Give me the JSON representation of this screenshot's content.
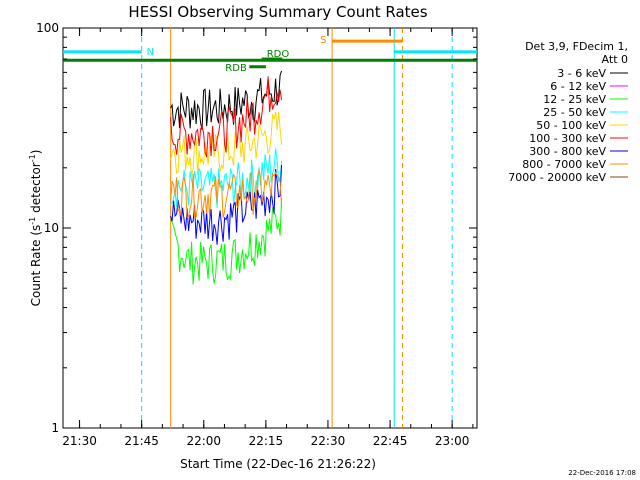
{
  "chart_data": {
    "type": "line",
    "title": "HESSI Observing Summary Count Rates",
    "xlabel": "Start Time (22-Dec-16 21:26:22)",
    "ylabel": "Count Rate (s",
    "ylabel_sup": "-1",
    "ylabel_tail": " detector",
    "ylabel_tail_sup": "-1",
    "ylabel_close": ")",
    "yscale": "log",
    "ylim": [
      1,
      100
    ],
    "y_ticks": [
      {
        "value": 1,
        "label": "1"
      },
      {
        "value": 10,
        "label": "10"
      },
      {
        "value": 100,
        "label": "100"
      }
    ],
    "x_ticks": [
      {
        "value": 4,
        "label": "21:30"
      },
      {
        "value": 19,
        "label": "21:45"
      },
      {
        "value": 34,
        "label": "22:00"
      },
      {
        "value": 49,
        "label": "22:15"
      },
      {
        "value": 64,
        "label": "22:30"
      },
      {
        "value": 79,
        "label": "22:45"
      },
      {
        "value": 94,
        "label": "23:00"
      }
    ],
    "xlim": [
      0,
      100
    ],
    "x_unit_note": "minutes after 21:26",
    "legend": {
      "position": "right",
      "header": [
        "Det 3,9, FDecim 1,",
        "Att 0"
      ],
      "entries": [
        {
          "label": "3 - 6 keV",
          "color": "#000000"
        },
        {
          "label": "6 - 12 keV",
          "color": "#ff00ff"
        },
        {
          "label": "12 - 25 keV",
          "color": "#00ff00"
        },
        {
          "label": "25 - 50 keV",
          "color": "#00ffff"
        },
        {
          "label": "50 - 100 keV",
          "color": "#ffd700"
        },
        {
          "label": "100 - 300 keV",
          "color": "#ff0000"
        },
        {
          "label": "300 - 800 keV",
          "color": "#0000ff"
        },
        {
          "label": "800 - 7000 keV",
          "color": "#ff8c00"
        },
        {
          "label": "7000 - 20000 keV",
          "color": "#8b4513"
        }
      ]
    },
    "data_interval": [
      26,
      53
    ],
    "series": [
      {
        "name": "3 - 6 keV",
        "color": "#000000",
        "values": [
          [
            26,
            40
          ],
          [
            30,
            40
          ],
          [
            34,
            40
          ],
          [
            38,
            40
          ],
          [
            42,
            42
          ],
          [
            46,
            44
          ],
          [
            50,
            48
          ],
          [
            53,
            52
          ]
        ]
      },
      {
        "name": "12 - 25 keV",
        "color": "#00ff00",
        "values": [
          [
            26,
            9
          ],
          [
            30,
            7
          ],
          [
            34,
            6.8
          ],
          [
            38,
            7
          ],
          [
            42,
            7.5
          ],
          [
            46,
            8.5
          ],
          [
            50,
            10
          ],
          [
            53,
            12
          ]
        ]
      },
      {
        "name": "25 - 50 keV",
        "color": "#00ffff",
        "values": [
          [
            26,
            17
          ],
          [
            30,
            16
          ],
          [
            34,
            16
          ],
          [
            38,
            16
          ],
          [
            42,
            17
          ],
          [
            46,
            18
          ],
          [
            50,
            20
          ],
          [
            53,
            22
          ]
        ]
      },
      {
        "name": "50 - 100 keV",
        "color": "#ffd700",
        "values": [
          [
            26,
            25
          ],
          [
            30,
            24
          ],
          [
            34,
            24
          ],
          [
            38,
            24
          ],
          [
            42,
            25
          ],
          [
            46,
            27
          ],
          [
            50,
            30
          ],
          [
            53,
            33
          ]
        ]
      },
      {
        "name": "100 - 300 keV",
        "color": "#ff0000",
        "values": [
          [
            26,
            30
          ],
          [
            30,
            30
          ],
          [
            34,
            30
          ],
          [
            38,
            31
          ],
          [
            42,
            33
          ],
          [
            46,
            38
          ],
          [
            50,
            48
          ],
          [
            53,
            55
          ]
        ]
      },
      {
        "name": "300 - 800 keV",
        "color": "#0000ff",
        "values": [
          [
            26,
            12
          ],
          [
            30,
            11
          ],
          [
            34,
            11
          ],
          [
            38,
            11
          ],
          [
            42,
            12
          ],
          [
            46,
            13
          ],
          [
            50,
            15
          ],
          [
            53,
            17
          ]
        ]
      },
      {
        "name": "800 - 7000 keV",
        "color": "#ff8c00",
        "values": [
          [
            26,
            15.5
          ],
          [
            30,
            15
          ],
          [
            34,
            14.8
          ],
          [
            38,
            14.8
          ],
          [
            42,
            15
          ],
          [
            46,
            15.5
          ],
          [
            50,
            16
          ],
          [
            53,
            16.5
          ]
        ]
      }
    ],
    "annotations": [
      {
        "label": "N",
        "color": "#00e5ff",
        "kind": "bar",
        "x": [
          0,
          19
        ],
        "y": 76
      },
      {
        "label": "",
        "color": "#00e5ff",
        "kind": "bar",
        "x": [
          80,
          100
        ],
        "y": 76
      },
      {
        "label": "S",
        "color": "#ff8c00",
        "kind": "bar",
        "x": [
          65,
          82
        ],
        "y": 86
      },
      {
        "label": "",
        "color": "#008000",
        "kind": "bar",
        "x": [
          0,
          100
        ],
        "y": 69
      },
      {
        "label": "RDB",
        "color": "#008000",
        "kind": "bar",
        "x": [
          45,
          49
        ],
        "y": 64
      },
      {
        "label": "RDO",
        "color": "#008000",
        "kind": "bar",
        "x": [
          48,
          53
        ],
        "y": 70
      }
    ],
    "vlines": [
      {
        "x": 19,
        "color": "#00e5ff",
        "style": "dashed"
      },
      {
        "x": 80,
        "color": "#00e5ff",
        "style": "solid"
      },
      {
        "x": 94,
        "color": "#00e5ff",
        "style": "dashed"
      },
      {
        "x": 65,
        "color": "#ff8c00",
        "style": "solid"
      },
      {
        "x": 82,
        "color": "#ff8c00",
        "style": "dashed"
      },
      {
        "x": 26,
        "color": "#ff8c00",
        "style": "solid"
      }
    ],
    "grid": false
  },
  "footer": {
    "timestamp": "22-Dec-2016 17:08"
  }
}
